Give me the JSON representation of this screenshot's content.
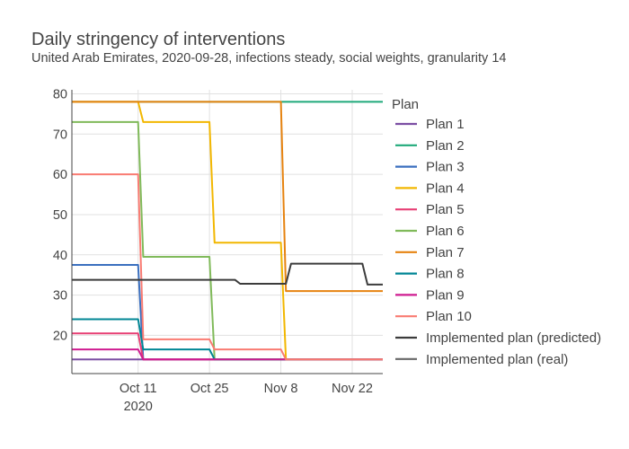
{
  "chart_data": {
    "type": "line",
    "title": "Daily stringency of interventions",
    "subtitle": "United Arab Emirates, 2020-09-28, infections steady, social weights, granularity 14",
    "xlabel": "",
    "ylabel": "",
    "x_range": [
      "2020-09-28",
      "2020-11-28"
    ],
    "ylim": [
      10.5,
      81
    ],
    "x_ticks": [
      {
        "date": "2020-10-11",
        "label": "Oct 11",
        "sub": "2020"
      },
      {
        "date": "2020-10-25",
        "label": "Oct 25",
        "sub": ""
      },
      {
        "date": "2020-11-08",
        "label": "Nov 8",
        "sub": ""
      },
      {
        "date": "2020-11-22",
        "label": "Nov 22",
        "sub": ""
      }
    ],
    "y_ticks": [
      20,
      30,
      40,
      50,
      60,
      70,
      80
    ],
    "grid": true,
    "legend": {
      "title": "Plan",
      "position": "right"
    },
    "series": [
      {
        "name": "Plan 1",
        "color": "#7b4ea3",
        "points": [
          [
            "2020-09-28",
            14
          ],
          [
            "2020-11-28",
            14
          ]
        ]
      },
      {
        "name": "Plan 2",
        "color": "#1fa97a",
        "points": [
          [
            "2020-09-28",
            78
          ],
          [
            "2020-11-28",
            78
          ]
        ]
      },
      {
        "name": "Plan 3",
        "color": "#3a6fbf",
        "points": [
          [
            "2020-09-28",
            37.5
          ],
          [
            "2020-10-11",
            37.5
          ],
          [
            "2020-10-12",
            14
          ],
          [
            "2020-11-28",
            14
          ]
        ]
      },
      {
        "name": "Plan 4",
        "color": "#f2b701",
        "points": [
          [
            "2020-09-28",
            78
          ],
          [
            "2020-10-11",
            78
          ],
          [
            "2020-10-12",
            73
          ],
          [
            "2020-10-25",
            73
          ],
          [
            "2020-10-26",
            43
          ],
          [
            "2020-11-08",
            43
          ],
          [
            "2020-11-09",
            14
          ],
          [
            "2020-11-28",
            14
          ]
        ]
      },
      {
        "name": "Plan 5",
        "color": "#e73f74",
        "points": [
          [
            "2020-09-28",
            20.5
          ],
          [
            "2020-10-11",
            20.5
          ],
          [
            "2020-10-12",
            14
          ],
          [
            "2020-11-28",
            14
          ]
        ]
      },
      {
        "name": "Plan 6",
        "color": "#80ba5a",
        "points": [
          [
            "2020-09-28",
            73
          ],
          [
            "2020-10-11",
            73
          ],
          [
            "2020-10-12",
            39.5
          ],
          [
            "2020-10-25",
            39.5
          ],
          [
            "2020-10-26",
            14
          ],
          [
            "2020-11-28",
            14
          ]
        ]
      },
      {
        "name": "Plan 7",
        "color": "#e68310",
        "points": [
          [
            "2020-09-28",
            78
          ],
          [
            "2020-11-08",
            78
          ],
          [
            "2020-11-09",
            31
          ],
          [
            "2020-11-28",
            31
          ]
        ]
      },
      {
        "name": "Plan 8",
        "color": "#008695",
        "points": [
          [
            "2020-09-28",
            24
          ],
          [
            "2020-10-11",
            24
          ],
          [
            "2020-10-12",
            16.5
          ],
          [
            "2020-10-25",
            16.5
          ],
          [
            "2020-10-26",
            14
          ],
          [
            "2020-11-28",
            14
          ]
        ]
      },
      {
        "name": "Plan 9",
        "color": "#cf1c90",
        "points": [
          [
            "2020-09-28",
            16.5
          ],
          [
            "2020-10-11",
            16.5
          ],
          [
            "2020-10-12",
            14
          ],
          [
            "2020-11-28",
            14
          ]
        ]
      },
      {
        "name": "Plan 10",
        "color": "#f97b72",
        "points": [
          [
            "2020-09-28",
            60
          ],
          [
            "2020-10-11",
            60
          ],
          [
            "2020-10-12",
            19
          ],
          [
            "2020-10-25",
            19
          ],
          [
            "2020-10-26",
            16.5
          ],
          [
            "2020-11-08",
            16.5
          ],
          [
            "2020-11-09",
            14
          ],
          [
            "2020-11-28",
            14
          ]
        ]
      },
      {
        "name": "Implemented plan (predicted)",
        "color": "#3c3c3c",
        "points": [
          [
            "2020-09-28",
            33.8
          ],
          [
            "2020-10-25",
            33.8
          ],
          [
            "2020-10-30",
            33.8
          ],
          [
            "2020-10-31",
            32.8
          ],
          [
            "2020-11-09",
            32.8
          ],
          [
            "2020-11-10",
            37.8
          ],
          [
            "2020-11-24",
            37.8
          ],
          [
            "2020-11-25",
            32.6
          ],
          [
            "2020-11-28",
            32.6
          ]
        ]
      },
      {
        "name": "Implemented plan (real)",
        "color": "#666666",
        "points": []
      }
    ]
  }
}
